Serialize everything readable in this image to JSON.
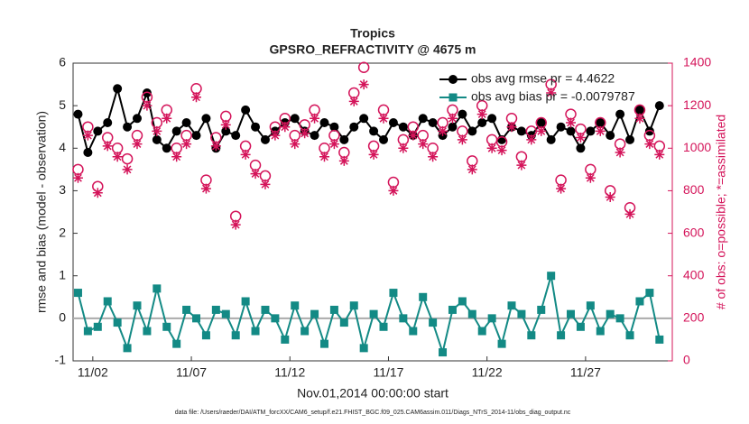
{
  "chart_data": {
    "type": "line",
    "title": "Tropics",
    "subtitle": "GPSRO_REFRACTIVITY @ 4675 m",
    "x_label": "Nov.01,2014 00:00:00 start",
    "y_label": "rmse and bias (model - observation)",
    "y2_label": "# of obs: o=possible; *=assimilated",
    "footnote": "data file: /Users/raeder/DAI/ATM_forcXX/CAM6_setup/f.e21.FHIST_BGC.f09_025.CAM6assim.011/Diags_NTrS_2014-11/obs_diag_output.nc",
    "xlim": [
      0,
      30.4
    ],
    "xticks": [
      {
        "value": 1,
        "label": "11/02"
      },
      {
        "value": 6,
        "label": "11/07"
      },
      {
        "value": 11,
        "label": "11/12"
      },
      {
        "value": 16,
        "label": "11/17"
      },
      {
        "value": 21,
        "label": "11/22"
      },
      {
        "value": 26,
        "label": "11/27"
      }
    ],
    "ylim": [
      -1,
      6
    ],
    "yticks": [
      -1,
      0,
      1,
      2,
      3,
      4,
      5,
      6
    ],
    "y2lim": [
      0,
      1400
    ],
    "y2ticks": [
      0,
      200,
      400,
      600,
      800,
      1000,
      1200,
      1400
    ],
    "grid": false,
    "legend": "upper right",
    "x": [
      0.25,
      0.75,
      1.25,
      1.75,
      2.25,
      2.75,
      3.25,
      3.75,
      4.25,
      4.75,
      5.25,
      5.75,
      6.25,
      6.75,
      7.25,
      7.75,
      8.25,
      8.75,
      9.25,
      9.75,
      10.25,
      10.75,
      11.25,
      11.75,
      12.25,
      12.75,
      13.25,
      13.75,
      14.25,
      14.75,
      15.25,
      15.75,
      16.25,
      16.75,
      17.25,
      17.75,
      18.25,
      18.75,
      19.25,
      19.75,
      20.25,
      20.75,
      21.25,
      21.75,
      22.25,
      22.75,
      23.25,
      23.75,
      24.25,
      24.75,
      25.25,
      25.75,
      26.25,
      26.75,
      27.25,
      27.75,
      28.25,
      28.75,
      29.25,
      29.75
    ],
    "series": [
      {
        "name": "obs avg rmse pr = 4.4622",
        "color": "#000000",
        "marker": "circle",
        "axis": "y",
        "values": [
          4.8,
          3.9,
          4.4,
          4.6,
          5.4,
          4.5,
          4.7,
          5.3,
          4.2,
          4.0,
          4.4,
          4.6,
          4.3,
          4.7,
          4.0,
          4.4,
          4.3,
          4.9,
          4.5,
          4.2,
          4.4,
          4.6,
          4.7,
          4.4,
          4.3,
          4.6,
          4.5,
          4.2,
          4.5,
          4.7,
          4.4,
          4.2,
          4.6,
          4.5,
          4.3,
          4.7,
          4.6,
          4.3,
          4.5,
          4.8,
          4.4,
          4.6,
          4.7,
          4.2,
          4.5,
          4.4,
          4.3,
          4.6,
          4.2,
          4.5,
          4.4,
          4.0,
          4.4,
          4.6,
          4.3,
          4.8,
          4.2,
          4.9,
          4.4,
          5.0
        ]
      },
      {
        "name": "obs avg bias pr = -0.0079787",
        "color": "#138a85",
        "marker": "square",
        "axis": "y",
        "values": [
          0.6,
          -0.3,
          -0.2,
          0.4,
          -0.1,
          -0.7,
          0.3,
          -0.3,
          0.7,
          -0.2,
          -0.6,
          0.2,
          0.0,
          -0.4,
          0.2,
          0.1,
          -0.4,
          0.4,
          -0.3,
          0.2,
          0.0,
          -0.5,
          0.3,
          -0.3,
          0.1,
          -0.6,
          0.2,
          -0.1,
          0.3,
          -0.7,
          0.1,
          -0.2,
          0.6,
          0.0,
          -0.3,
          0.5,
          -0.1,
          -0.8,
          0.2,
          0.4,
          0.1,
          -0.3,
          0.0,
          -0.6,
          0.3,
          0.1,
          -0.4,
          0.2,
          1.0,
          -0.4,
          0.1,
          -0.2,
          0.3,
          -0.3,
          0.1,
          0.0,
          -0.4,
          0.4,
          0.6,
          -0.5
        ]
      },
      {
        "color": "#d4145a",
        "marker": "open-circle",
        "axis": "y2",
        "values": [
          900,
          1100,
          820,
          1050,
          1000,
          950,
          1060,
          1240,
          1120,
          1180,
          1000,
          1060,
          1280,
          850,
          1050,
          1150,
          680,
          1010,
          920,
          870,
          1100,
          1140,
          1060,
          1110,
          1180,
          1000,
          1060,
          980,
          1260,
          1380,
          1010,
          1180,
          840,
          1040,
          1100,
          1060,
          1000,
          1120,
          1180,
          1080,
          940,
          1200,
          1040,
          1030,
          1140,
          960,
          1080,
          1120,
          1300,
          850,
          1160,
          1090,
          900,
          1120,
          800,
          1020,
          720,
          1180,
          1060,
          1010
        ]
      },
      {
        "color": "#d4145a",
        "marker": "asterisk",
        "axis": "y2",
        "values": [
          860,
          1060,
          790,
          1010,
          960,
          900,
          1020,
          1200,
          1080,
          1140,
          960,
          1020,
          1240,
          810,
          1010,
          1110,
          640,
          970,
          880,
          830,
          1060,
          1100,
          1020,
          1070,
          1140,
          960,
          1020,
          940,
          1220,
          1300,
          970,
          1140,
          800,
          1000,
          1060,
          1020,
          960,
          1080,
          1140,
          1040,
          900,
          1160,
          1000,
          990,
          1100,
          920,
          1040,
          1080,
          1260,
          810,
          1120,
          1050,
          860,
          1080,
          770,
          980,
          690,
          1140,
          1020,
          970
        ]
      }
    ]
  }
}
